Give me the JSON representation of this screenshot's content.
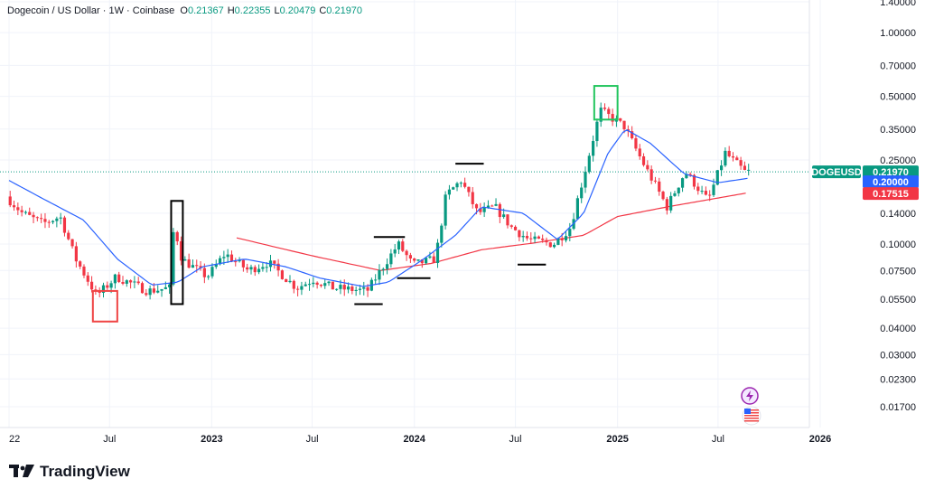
{
  "header": {
    "symbol": "Dogecoin / US Dollar",
    "interval": "1W",
    "exchange": "Coinbase",
    "open_label": "O",
    "open": "0.21367",
    "high_label": "H",
    "high": "0.22355",
    "low_label": "L",
    "low": "0.20479",
    "close_label": "C",
    "close": "0.21970"
  },
  "brand": {
    "name": "TradingView"
  },
  "colors": {
    "up": "#089981",
    "down": "#f23645",
    "ma_fast": "#2962ff",
    "ma_slow": "#f23645",
    "price_tag": "#089981",
    "ma_slow_tag": "#f23645",
    "highlight_green": "#22c55e",
    "highlight_red": "#ef4444",
    "highlight_black": "#000000"
  },
  "chart_data": {
    "type": "candlestick",
    "y_scale": "log",
    "ylim": [
      0.0145,
      1.42
    ],
    "y_ticks": [
      "1.40000",
      "1.00000",
      "0.70000",
      "0.50000",
      "0.35000",
      "0.25000",
      "0.14000",
      "0.10000",
      "0.07500",
      "0.05500",
      "0.04000",
      "0.03000",
      "0.02300",
      "0.01700"
    ],
    "x_ticks": [
      {
        "label": "22",
        "date": "2022-01-01"
      },
      {
        "label": "Jul",
        "date": "2022-07-01"
      },
      {
        "label": "2023",
        "date": "2023-01-01"
      },
      {
        "label": "Jul",
        "date": "2023-07-01"
      },
      {
        "label": "2024",
        "date": "2024-01-01"
      },
      {
        "label": "Jul",
        "date": "2024-07-01"
      },
      {
        "label": "2025",
        "date": "2025-01-01"
      },
      {
        "label": "Jul",
        "date": "2025-07-01"
      },
      {
        "label": "2026",
        "date": "2026-01-01"
      }
    ],
    "last_price_label": "DOGEUSD",
    "last_price": "0.21970",
    "ma_fast_value": "0.20000",
    "ma_slow_value": "0.17515",
    "price_anchors": [
      [
        "2022-01-01",
        0.17
      ],
      [
        "2022-02-01",
        0.14
      ],
      [
        "2022-03-10",
        0.125
      ],
      [
        "2022-04-10",
        0.135
      ],
      [
        "2022-05-08",
        0.085
      ],
      [
        "2022-06-15",
        0.057
      ],
      [
        "2022-07-20",
        0.07
      ],
      [
        "2022-09-15",
        0.06
      ],
      [
        "2022-10-25",
        0.062
      ],
      [
        "2022-11-01",
        0.125
      ],
      [
        "2022-11-15",
        0.085
      ],
      [
        "2022-12-31",
        0.07
      ],
      [
        "2023-02-01",
        0.09
      ],
      [
        "2023-03-15",
        0.075
      ],
      [
        "2023-04-20",
        0.082
      ],
      [
        "2023-06-10",
        0.062
      ],
      [
        "2023-07-10",
        0.068
      ],
      [
        "2023-08-15",
        0.062
      ],
      [
        "2023-10-15",
        0.06
      ],
      [
        "2023-11-15",
        0.08
      ],
      [
        "2023-12-10",
        0.1
      ],
      [
        "2024-01-05",
        0.08
      ],
      [
        "2024-02-15",
        0.085
      ],
      [
        "2024-03-05",
        0.17
      ],
      [
        "2024-04-01",
        0.2
      ],
      [
        "2024-05-01",
        0.14
      ],
      [
        "2024-06-01",
        0.15
      ],
      [
        "2024-07-01",
        0.12
      ],
      [
        "2024-08-01",
        0.105
      ],
      [
        "2024-09-15",
        0.1
      ],
      [
        "2024-10-15",
        0.12
      ],
      [
        "2024-11-10",
        0.22
      ],
      [
        "2024-12-08",
        0.43
      ],
      [
        "2025-01-20",
        0.36
      ],
      [
        "2025-02-20",
        0.25
      ],
      [
        "2025-04-07",
        0.15
      ],
      [
        "2025-05-10",
        0.22
      ],
      [
        "2025-06-20",
        0.16
      ],
      [
        "2025-07-21",
        0.27
      ],
      [
        "2025-08-25",
        0.22
      ]
    ],
    "ma_fast_anchors": [
      [
        "2022-01-01",
        0.2
      ],
      [
        "2022-03-01",
        0.165
      ],
      [
        "2022-05-15",
        0.13
      ],
      [
        "2022-07-15",
        0.085
      ],
      [
        "2022-09-15",
        0.064
      ],
      [
        "2022-11-01",
        0.066
      ],
      [
        "2022-12-15",
        0.078
      ],
      [
        "2023-03-01",
        0.085
      ],
      [
        "2023-05-15",
        0.078
      ],
      [
        "2023-07-15",
        0.069
      ],
      [
        "2023-10-01",
        0.063
      ],
      [
        "2023-11-15",
        0.066
      ],
      [
        "2024-01-15",
        0.084
      ],
      [
        "2024-03-15",
        0.11
      ],
      [
        "2024-05-01",
        0.15
      ],
      [
        "2024-07-15",
        0.14
      ],
      [
        "2024-09-15",
        0.105
      ],
      [
        "2024-11-01",
        0.14
      ],
      [
        "2024-12-15",
        0.27
      ],
      [
        "2025-01-15",
        0.35
      ],
      [
        "2025-03-01",
        0.3
      ],
      [
        "2025-05-01",
        0.215
      ],
      [
        "2025-07-01",
        0.195
      ],
      [
        "2025-08-25",
        0.205
      ]
    ],
    "ma_slow_anchors": [
      [
        "2023-02-15",
        0.107
      ],
      [
        "2023-07-01",
        0.088
      ],
      [
        "2023-11-01",
        0.075
      ],
      [
        "2024-02-01",
        0.081
      ],
      [
        "2024-05-01",
        0.094
      ],
      [
        "2024-08-01",
        0.101
      ],
      [
        "2024-11-01",
        0.11
      ],
      [
        "2025-01-01",
        0.135
      ],
      [
        "2025-04-01",
        0.15
      ],
      [
        "2025-08-25",
        0.175
      ]
    ],
    "annotations": {
      "red_box": {
        "from": "2022-06-01",
        "to": "2022-07-15",
        "low": 0.043,
        "high": 0.06
      },
      "black_box": {
        "from": "2022-10-20",
        "to": "2022-11-10",
        "low": 0.052,
        "high": 0.16
      },
      "green_box": {
        "from": "2024-11-20",
        "to": "2025-01-01",
        "low": 0.388,
        "high": 0.56
      },
      "lines": [
        {
          "from": "2023-09-15",
          "to": "2023-11-05",
          "value": 0.052
        },
        {
          "from": "2023-10-20",
          "to": "2023-12-15",
          "value": 0.108
        },
        {
          "from": "2023-12-01",
          "to": "2024-01-30",
          "value": 0.069
        },
        {
          "from": "2024-03-15",
          "to": "2024-05-05",
          "value": 0.24
        },
        {
          "from": "2024-07-05",
          "to": "2024-08-25",
          "value": 0.08
        }
      ]
    }
  }
}
